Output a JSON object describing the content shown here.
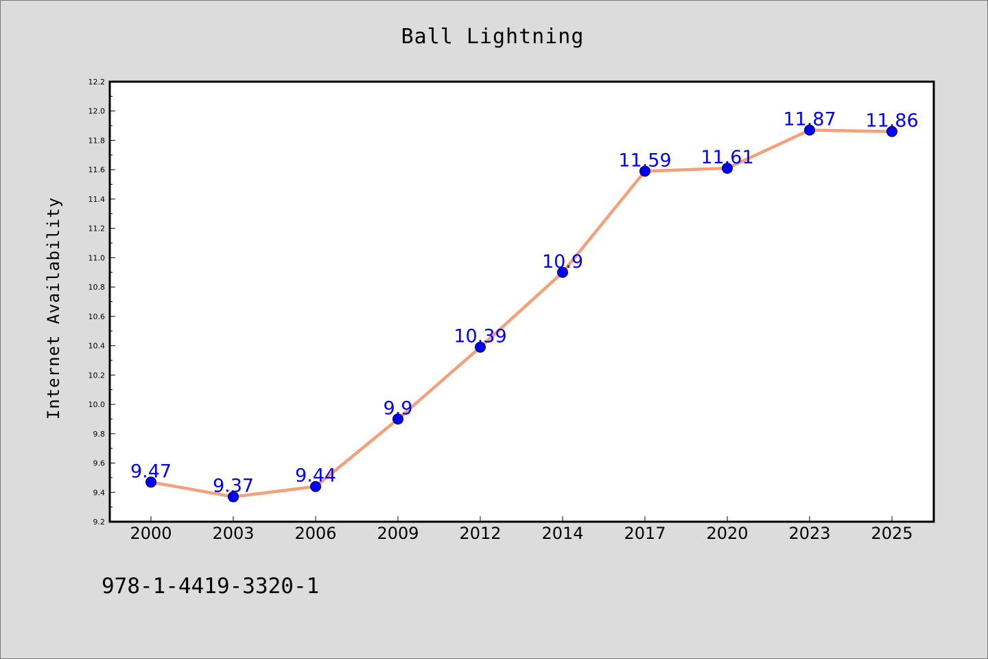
{
  "chart_data": {
    "type": "line",
    "title": "Ball Lightning",
    "xlabel": "",
    "ylabel": "Internet Availability",
    "categories": [
      "2000",
      "2003",
      "2006",
      "2009",
      "2012",
      "2014",
      "2017",
      "2020",
      "2023",
      "2025"
    ],
    "series": [
      {
        "values": [
          9.47,
          9.37,
          9.44,
          9.9,
          10.39,
          10.9,
          11.59,
          11.61,
          11.87,
          11.86
        ],
        "data_labels": [
          "9.47",
          "9.37",
          "9.44",
          "9.9",
          "10.39",
          "10.9",
          "11.59",
          "11.61",
          "11.87",
          "11.86"
        ],
        "line_color": "#f4a07a",
        "marker_color": "#0000ff"
      }
    ],
    "ylim": [
      9.2,
      12.2
    ],
    "yticks": [
      "9.2",
      "9.4",
      "9.6",
      "9.8",
      "10.0",
      "10.2",
      "10.4",
      "10.6",
      "10.8",
      "11.0",
      "11.2",
      "11.4",
      "11.6",
      "11.8",
      "12.0",
      "12.2"
    ],
    "grid": false,
    "legend": "none",
    "label_color": "#0000ff"
  },
  "footer": {
    "isbn": "978-1-4419-3320-1"
  }
}
